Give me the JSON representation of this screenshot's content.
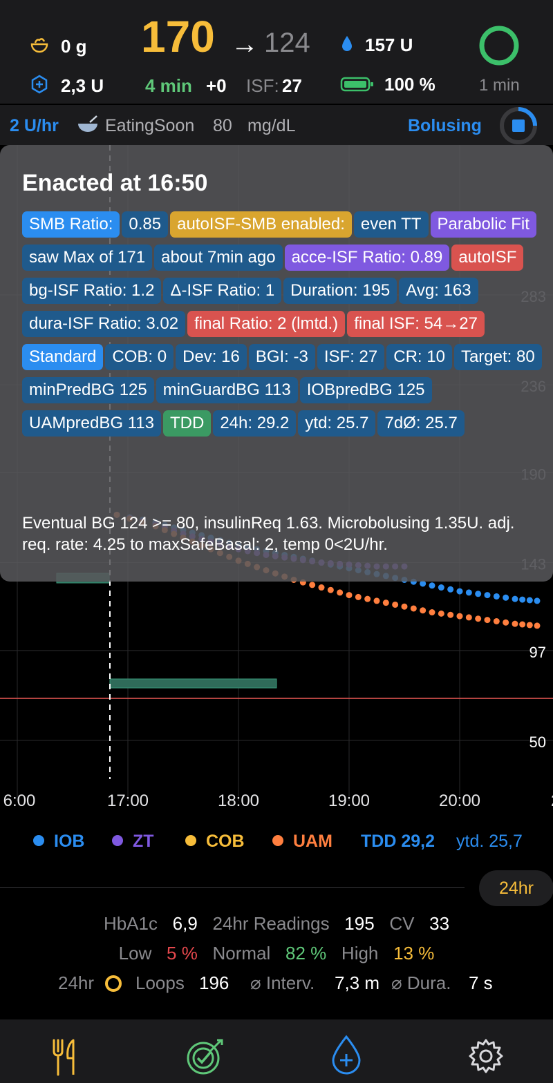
{
  "header": {
    "carbs": "0 g",
    "bg": "170",
    "arrow": "→",
    "eventual": "124",
    "reservoir": "157 U",
    "iob": "2,3 U",
    "minutes_ago": "4 min",
    "delta": "+0",
    "isf_label": "ISF:",
    "isf_value": "27",
    "battery": "100 %",
    "loop_ago": "1 min",
    "colors": {
      "bg": "#f7bd3a",
      "minutes": "#5fc879",
      "loop_ring": "#3cc06a",
      "accent": "#2b8df0"
    }
  },
  "subbar": {
    "basal": "2 U/hr",
    "target_name": "EatingSoon",
    "target_value": "80",
    "unit": "mg/dL",
    "status": "Bolusing"
  },
  "overlay": {
    "title": "Enacted at 16:50",
    "tags": [
      {
        "text": "SMB Ratio:",
        "color": "blue"
      },
      {
        "text": "0.85",
        "color": "dark"
      },
      {
        "text": "autoISF-SMB enabled:",
        "color": "yellow"
      },
      {
        "text": "even TT",
        "color": "dark"
      },
      {
        "text": "Parabolic Fit",
        "color": "purple"
      },
      {
        "text": "saw Max of 171",
        "color": "dark"
      },
      {
        "text": "about 7min ago",
        "color": "dark"
      },
      {
        "text": "acce-ISF Ratio: 0.89",
        "color": "purple"
      },
      {
        "text": "autoISF",
        "color": "red"
      },
      {
        "text": "bg-ISF Ratio: 1.2",
        "color": "dark"
      },
      {
        "text": "Δ-ISF Ratio: 1",
        "color": "dark"
      },
      {
        "text": "Duration: 195",
        "color": "dark"
      },
      {
        "text": "Avg: 163",
        "color": "dark"
      },
      {
        "text": "dura-ISF Ratio: 3.02",
        "color": "dark"
      },
      {
        "text": "final Ratio: 2 (lmtd.)",
        "color": "red"
      },
      {
        "text": "final ISF: 54→27",
        "color": "red"
      },
      {
        "text": "Standard",
        "color": "blue"
      },
      {
        "text": "COB: 0",
        "color": "dark"
      },
      {
        "text": "Dev: 16",
        "color": "dark"
      },
      {
        "text": "BGI: -3",
        "color": "dark"
      },
      {
        "text": "ISF: 27",
        "color": "dark"
      },
      {
        "text": "CR: 10",
        "color": "dark"
      },
      {
        "text": "Target: 80",
        "color": "dark"
      },
      {
        "text": "minPredBG 125",
        "color": "dark"
      },
      {
        "text": "minGuardBG 113",
        "color": "dark"
      },
      {
        "text": "IOBpredBG 125",
        "color": "dark"
      },
      {
        "text": "UAMpredBG 113",
        "color": "dark"
      },
      {
        "text": "TDD",
        "color": "green"
      },
      {
        "text": "24h: 29.2",
        "color": "dark"
      },
      {
        "text": "ytd: 25.7",
        "color": "dark"
      },
      {
        "text": "7dØ: 25.7",
        "color": "dark"
      }
    ],
    "reason": "Eventual BG 124 >= 80,  insulinReq 1.63. Microbolusing 1.35U. adj. req. rate: 4.25 to maxSafeBasal: 2, temp 0<2U/hr."
  },
  "chart_data": {
    "type": "line",
    "x_ticks": [
      "6:00",
      "17:00",
      "18:00",
      "19:00",
      "20:00",
      "2"
    ],
    "y_ticks": [
      283,
      236,
      190,
      143,
      97,
      50
    ],
    "grid": true,
    "series": [
      {
        "name": "IOB",
        "color": "#2b8df0",
        "x": [
          16.9,
          17.25,
          17.5,
          17.75,
          18.0,
          18.25,
          18.5,
          18.75,
          19.0,
          19.25,
          19.5,
          19.75,
          20.0,
          20.25,
          20.5,
          20.7
        ],
        "y": [
          168,
          164,
          160,
          156,
          152,
          149,
          146,
          143,
          140,
          137,
          134,
          131,
          128,
          126,
          124,
          123
        ]
      },
      {
        "name": "ZT",
        "color": "#7f59e0",
        "x": [
          16.9,
          17.25,
          17.5,
          17.75,
          18.0,
          18.25,
          18.5,
          18.75,
          19.0,
          19.25,
          19.5
        ],
        "y": [
          168,
          163,
          158,
          154,
          150,
          147,
          145,
          143,
          142,
          141,
          141
        ]
      },
      {
        "name": "UAM",
        "color": "#ff7f3f",
        "x": [
          16.9,
          17.25,
          17.5,
          17.75,
          18.0,
          18.25,
          18.5,
          18.75,
          19.0,
          19.25,
          19.5,
          19.75,
          20.0,
          20.25,
          20.5,
          20.7
        ],
        "y": [
          168,
          162,
          156,
          150,
          144,
          139,
          134,
          130,
          126,
          123,
          120,
          117,
          115,
          113,
          111,
          110
        ]
      }
    ]
  },
  "legend": {
    "iob": "IOB",
    "zt": "ZT",
    "cob": "COB",
    "uam": "UAM",
    "tdd": "TDD 29,2",
    "ytd": "ytd. 25,7"
  },
  "range_button": "24hr",
  "stats": {
    "hba1c_label": "HbA1c",
    "hba1c": "6,9",
    "readings_label": "24hr Readings",
    "readings": "195",
    "cv_label": "CV",
    "cv": "33",
    "low_label": "Low",
    "low": "5 %",
    "normal_label": "Normal",
    "normal": "82 %",
    "high_label": "High",
    "high": "13 %",
    "loops_period": "24hr",
    "loops_label": "Loops",
    "loops": "196",
    "interval_label": "⌀ Interv.",
    "interval": "7,3 m",
    "duration_label": "⌀ Dura.",
    "duration": "7 s"
  }
}
